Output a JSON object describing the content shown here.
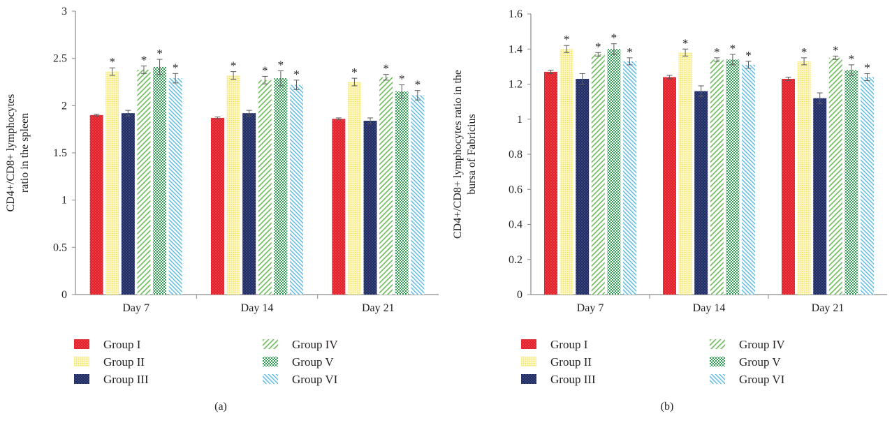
{
  "patterns": [
    {
      "id": "g1",
      "color": "#e3202a",
      "style": "dense-red"
    },
    {
      "id": "g2",
      "color": "#f1e04a",
      "style": "light-dots"
    },
    {
      "id": "g3",
      "color": "#1d2a63",
      "style": "dense-navy"
    },
    {
      "id": "g4",
      "color": "#6cba5a",
      "style": "diagonal"
    },
    {
      "id": "g5",
      "color": "#2f9a52",
      "style": "checker"
    },
    {
      "id": "g6",
      "color": "#58b8e0",
      "style": "diagonal-dense"
    }
  ],
  "chart_data": [
    {
      "type": "bar",
      "panel_label": "(a)",
      "ylabel": "CD4+/CD8+ lymphocytes ratio in the spleen",
      "xlabel": "",
      "categories": [
        "Day 7",
        "Day 14",
        "Day 21"
      ],
      "ylim": [
        0,
        3
      ],
      "yticks": [
        "0",
        "0.5",
        "1",
        "1.5",
        "2",
        "2.5",
        "3"
      ],
      "ytick_values": [
        0,
        0.5,
        1,
        1.5,
        2,
        2.5,
        3
      ],
      "significance_marker": "*",
      "legend_position": "bottom",
      "series": [
        {
          "name": "Group I",
          "values": [
            1.9,
            1.87,
            1.86
          ],
          "errors": [
            0.01,
            0.01,
            0.01
          ],
          "significant": [
            false,
            false,
            false
          ]
        },
        {
          "name": "Group II",
          "values": [
            2.36,
            2.32,
            2.25
          ],
          "errors": [
            0.04,
            0.04,
            0.04
          ],
          "significant": [
            true,
            true,
            true
          ]
        },
        {
          "name": "Group III",
          "values": [
            1.92,
            1.92,
            1.84
          ],
          "errors": [
            0.03,
            0.03,
            0.03
          ],
          "significant": [
            false,
            false,
            false
          ]
        },
        {
          "name": "Group IV",
          "values": [
            2.38,
            2.27,
            2.3
          ],
          "errors": [
            0.04,
            0.04,
            0.03
          ],
          "significant": [
            true,
            true,
            true
          ]
        },
        {
          "name": "Group V",
          "values": [
            2.41,
            2.29,
            2.15
          ],
          "errors": [
            0.08,
            0.08,
            0.07
          ],
          "significant": [
            true,
            true,
            true
          ]
        },
        {
          "name": "Group VI",
          "values": [
            2.29,
            2.22,
            2.11
          ],
          "errors": [
            0.05,
            0.05,
            0.05
          ],
          "significant": [
            true,
            true,
            true
          ]
        }
      ]
    },
    {
      "type": "bar",
      "panel_label": "(b)",
      "ylabel": "CD4+/CD8+ lymphocytes ratio in the bursa of Fabricius",
      "xlabel": "",
      "categories": [
        "Day 7",
        "Day 14",
        "Day 21"
      ],
      "ylim": [
        0,
        1.6
      ],
      "yticks": [
        "0",
        "0.2",
        "0.4",
        "0.6",
        "0.8",
        "1",
        "1.2",
        "1.4",
        "1.6"
      ],
      "ytick_values": [
        0,
        0.2,
        0.4,
        0.6,
        0.8,
        1,
        1.2,
        1.4,
        1.6
      ],
      "significance_marker": "*",
      "legend_position": "bottom",
      "series": [
        {
          "name": "Group I",
          "values": [
            1.27,
            1.24,
            1.23
          ],
          "errors": [
            0.01,
            0.01,
            0.01
          ],
          "significant": [
            false,
            false,
            false
          ]
        },
        {
          "name": "Group II",
          "values": [
            1.4,
            1.38,
            1.33
          ],
          "errors": [
            0.02,
            0.02,
            0.02
          ],
          "significant": [
            true,
            true,
            true
          ]
        },
        {
          "name": "Group III",
          "values": [
            1.23,
            1.16,
            1.12
          ],
          "errors": [
            0.03,
            0.03,
            0.03
          ],
          "significant": [
            false,
            false,
            false
          ]
        },
        {
          "name": "Group IV",
          "values": [
            1.37,
            1.34,
            1.35
          ],
          "errors": [
            0.01,
            0.01,
            0.01
          ],
          "significant": [
            true,
            true,
            true
          ]
        },
        {
          "name": "Group V",
          "values": [
            1.4,
            1.34,
            1.28
          ],
          "errors": [
            0.03,
            0.03,
            0.03
          ],
          "significant": [
            true,
            true,
            true
          ]
        },
        {
          "name": "Group VI",
          "values": [
            1.33,
            1.31,
            1.24
          ],
          "errors": [
            0.02,
            0.02,
            0.02
          ],
          "significant": [
            true,
            true,
            true
          ]
        }
      ]
    }
  ]
}
